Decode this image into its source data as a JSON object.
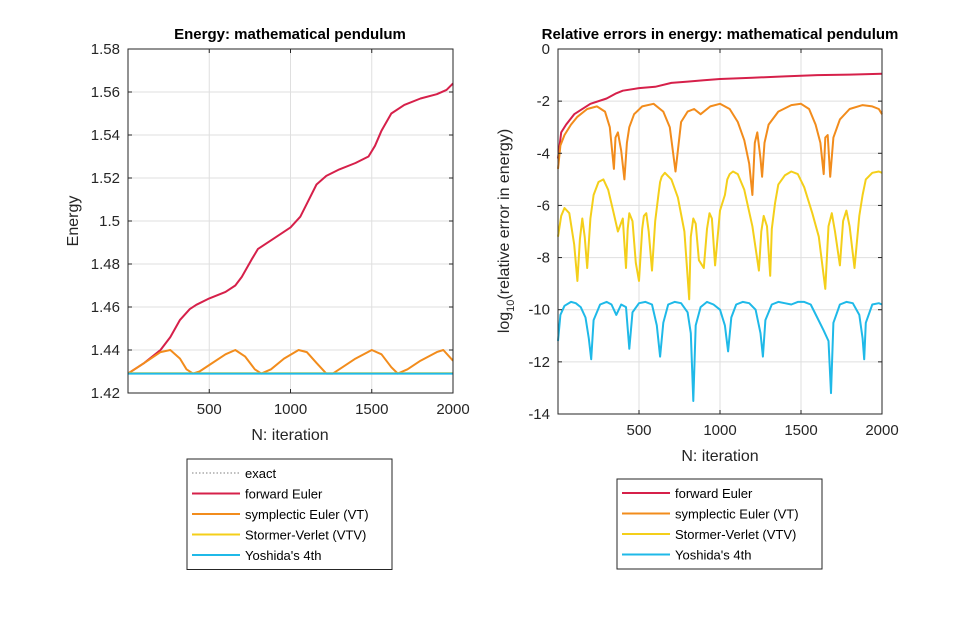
{
  "chart_data": [
    {
      "type": "line",
      "title": "Energy: mathematical pendulum",
      "xlabel": "N: iteration",
      "ylabel": "Energy",
      "xlim": [
        0,
        2000
      ],
      "ylim": [
        1.42,
        1.58
      ],
      "xticks": [
        500,
        1000,
        1500,
        2000
      ],
      "xtick_labels": [
        "500",
        "1000",
        "1500",
        "2000"
      ],
      "yticks": [
        1.42,
        1.44,
        1.46,
        1.48,
        1.5,
        1.52,
        1.54,
        1.56,
        1.58
      ],
      "ytick_labels": [
        "1.42",
        "1.44",
        "1.46",
        "1.48",
        "1.5",
        "1.52",
        "1.54",
        "1.56",
        "1.58"
      ],
      "grid": true,
      "legend_position": "below",
      "series": [
        {
          "name": "exact",
          "color": "#7f7f7f",
          "style": "dotted",
          "x": [
            0,
            2000
          ],
          "y": [
            1.429,
            1.429
          ]
        },
        {
          "name": "forward Euler",
          "color": "#d6204a",
          "style": "solid",
          "x": [
            0,
            100,
            200,
            260,
            320,
            380,
            420,
            500,
            600,
            660,
            700,
            760,
            800,
            900,
            1000,
            1060,
            1100,
            1160,
            1220,
            1300,
            1400,
            1480,
            1520,
            1560,
            1620,
            1700,
            1800,
            1900,
            1960,
            2000
          ],
          "y": [
            1.429,
            1.434,
            1.44,
            1.446,
            1.454,
            1.459,
            1.461,
            1.464,
            1.467,
            1.47,
            1.474,
            1.482,
            1.487,
            1.492,
            1.497,
            1.502,
            1.508,
            1.517,
            1.521,
            1.524,
            1.527,
            1.53,
            1.535,
            1.542,
            1.55,
            1.554,
            1.557,
            1.559,
            1.561,
            1.564
          ]
        },
        {
          "name": "symplectic Euler (VT)",
          "color": "#f28c1c",
          "style": "solid",
          "x": [
            0,
            100,
            200,
            260,
            320,
            360,
            400,
            440,
            500,
            600,
            660,
            720,
            780,
            820,
            880,
            960,
            1050,
            1100,
            1160,
            1220,
            1260,
            1320,
            1400,
            1500,
            1560,
            1620,
            1660,
            1720,
            1800,
            1900,
            1940,
            2000
          ],
          "y": [
            1.429,
            1.434,
            1.439,
            1.44,
            1.436,
            1.431,
            1.429,
            1.43,
            1.433,
            1.438,
            1.44,
            1.437,
            1.431,
            1.429,
            1.431,
            1.436,
            1.44,
            1.439,
            1.434,
            1.429,
            1.429,
            1.432,
            1.436,
            1.44,
            1.438,
            1.432,
            1.429,
            1.431,
            1.435,
            1.439,
            1.44,
            1.435
          ]
        },
        {
          "name": "Stormer-Verlet (VTV)",
          "color": "#f4cf1a",
          "style": "solid",
          "x": [
            0,
            2000
          ],
          "y": [
            1.4292,
            1.4292
          ]
        },
        {
          "name": "Yoshida's 4th",
          "color": "#1fb9e8",
          "style": "solid",
          "x": [
            0,
            2000
          ],
          "y": [
            1.429,
            1.429
          ]
        }
      ]
    },
    {
      "type": "line",
      "title": "Relative errors in energy: mathematical pendulum",
      "xlabel": "N: iteration",
      "ylabel_main": "log",
      "ylabel_sub": "10",
      "ylabel_rest": "(relative error in energy)",
      "xlim": [
        0,
        2000
      ],
      "ylim": [
        -14,
        0
      ],
      "xticks": [
        500,
        1000,
        1500,
        2000
      ],
      "xtick_labels": [
        "500",
        "1000",
        "1500",
        "2000"
      ],
      "yticks": [
        -14,
        -12,
        -10,
        -8,
        -6,
        -4,
        -2,
        0
      ],
      "ytick_labels": [
        "-14",
        "-12",
        "-10",
        "-8",
        "-6",
        "-4",
        "-2",
        "0"
      ],
      "grid": true,
      "legend_position": "below",
      "series": [
        {
          "name": "forward Euler",
          "color": "#d6204a",
          "style": "solid",
          "x": [
            0,
            20,
            50,
            100,
            200,
            300,
            360,
            400,
            500,
            600,
            700,
            800,
            900,
            1000,
            1200,
            1400,
            1600,
            1800,
            2000
          ],
          "y": [
            -4.2,
            -3.2,
            -2.9,
            -2.5,
            -2.1,
            -1.9,
            -1.7,
            -1.6,
            -1.5,
            -1.45,
            -1.3,
            -1.25,
            -1.2,
            -1.15,
            -1.1,
            -1.05,
            -1.0,
            -0.98,
            -0.95
          ]
        },
        {
          "name": "symplectic Euler (VT)",
          "color": "#f28c1c",
          "style": "solid",
          "x": [
            0,
            15,
            40,
            80,
            120,
            180,
            240,
            290,
            320,
            345,
            355,
            370,
            390,
            410,
            425,
            440,
            470,
            520,
            590,
            650,
            690,
            725,
            760,
            800,
            840,
            880,
            940,
            1000,
            1060,
            1110,
            1150,
            1180,
            1200,
            1215,
            1230,
            1250,
            1260,
            1275,
            1300,
            1360,
            1440,
            1500,
            1550,
            1590,
            1620,
            1640,
            1650,
            1665,
            1680,
            1700,
            1740,
            1800,
            1880,
            1940,
            1980,
            2000
          ],
          "y": [
            -4.6,
            -3.7,
            -3.3,
            -2.9,
            -2.6,
            -2.3,
            -2.2,
            -2.4,
            -3.0,
            -4.6,
            -3.4,
            -3.2,
            -3.9,
            -5.0,
            -3.6,
            -3.0,
            -2.5,
            -2.2,
            -2.1,
            -2.4,
            -3.0,
            -4.7,
            -2.8,
            -2.4,
            -2.3,
            -2.5,
            -2.2,
            -2.1,
            -2.3,
            -2.8,
            -3.5,
            -4.4,
            -5.6,
            -3.6,
            -3.2,
            -4.2,
            -4.9,
            -3.6,
            -2.9,
            -2.4,
            -2.15,
            -2.1,
            -2.3,
            -2.9,
            -3.6,
            -4.8,
            -3.4,
            -3.3,
            -4.9,
            -3.4,
            -2.7,
            -2.3,
            -2.15,
            -2.2,
            -2.3,
            -2.5
          ]
        },
        {
          "name": "Stormer-Verlet (VTV)",
          "color": "#f4cf1a",
          "style": "solid",
          "x": [
            0,
            20,
            40,
            70,
            100,
            120,
            135,
            150,
            165,
            180,
            200,
            220,
            250,
            280,
            310,
            340,
            370,
            400,
            420,
            430,
            440,
            460,
            480,
            500,
            520,
            530,
            545,
            560,
            580,
            600,
            620,
            630,
            640,
            660,
            700,
            740,
            780,
            810,
            820,
            835,
            850,
            870,
            900,
            920,
            935,
            950,
            970,
            1000,
            1030,
            1045,
            1060,
            1080,
            1110,
            1150,
            1200,
            1240,
            1255,
            1270,
            1290,
            1310,
            1320,
            1340,
            1360,
            1400,
            1440,
            1480,
            1520,
            1570,
            1610,
            1650,
            1670,
            1690,
            1710,
            1740,
            1760,
            1780,
            1800,
            1830,
            1860,
            1880,
            1900,
            1940,
            1980,
            2000
          ],
          "y": [
            -7.2,
            -6.4,
            -6.1,
            -6.3,
            -7.5,
            -8.9,
            -7.3,
            -6.5,
            -7.2,
            -8.4,
            -6.5,
            -5.6,
            -5.1,
            -5.0,
            -5.4,
            -6.2,
            -7.0,
            -6.5,
            -8.4,
            -6.9,
            -6.3,
            -6.6,
            -8.2,
            -8.9,
            -6.9,
            -6.4,
            -6.3,
            -7.0,
            -8.5,
            -6.6,
            -5.6,
            -5.1,
            -4.9,
            -4.75,
            -5.0,
            -5.7,
            -7.0,
            -9.6,
            -7.2,
            -6.5,
            -6.7,
            -8.1,
            -8.4,
            -6.9,
            -6.3,
            -6.5,
            -8.3,
            -6.2,
            -5.6,
            -5.0,
            -4.8,
            -4.7,
            -4.8,
            -5.4,
            -6.8,
            -8.5,
            -7.0,
            -6.4,
            -6.8,
            -8.7,
            -6.9,
            -5.9,
            -5.2,
            -4.85,
            -4.7,
            -4.8,
            -5.3,
            -6.3,
            -7.2,
            -9.2,
            -6.8,
            -6.3,
            -7.0,
            -8.3,
            -6.6,
            -6.2,
            -6.8,
            -8.4,
            -6.4,
            -5.6,
            -5.0,
            -4.75,
            -4.7,
            -4.75
          ]
        },
        {
          "name": "Yoshida's 4th",
          "color": "#1fb9e8",
          "style": "solid",
          "x": [
            0,
            15,
            40,
            80,
            110,
            140,
            170,
            190,
            205,
            220,
            260,
            300,
            330,
            360,
            390,
            420,
            440,
            460,
            500,
            540,
            580,
            610,
            630,
            650,
            680,
            720,
            760,
            800,
            820,
            835,
            850,
            880,
            920,
            960,
            1000,
            1030,
            1050,
            1070,
            1100,
            1140,
            1180,
            1220,
            1250,
            1265,
            1280,
            1320,
            1360,
            1400,
            1440,
            1480,
            1520,
            1560,
            1600,
            1640,
            1670,
            1685,
            1700,
            1740,
            1780,
            1820,
            1860,
            1880,
            1890,
            1900,
            1940,
            1980,
            2000
          ],
          "y": [
            -11.2,
            -10.2,
            -9.85,
            -9.7,
            -9.75,
            -9.9,
            -10.3,
            -11.1,
            -11.9,
            -10.4,
            -9.8,
            -9.7,
            -9.8,
            -10.2,
            -9.8,
            -9.9,
            -11.5,
            -10.1,
            -9.75,
            -9.7,
            -9.8,
            -10.6,
            -11.8,
            -10.5,
            -9.8,
            -9.7,
            -9.75,
            -10.1,
            -10.9,
            -13.5,
            -10.6,
            -9.9,
            -9.7,
            -9.8,
            -10.0,
            -10.6,
            -11.6,
            -10.3,
            -9.8,
            -9.7,
            -9.75,
            -10.0,
            -10.9,
            -11.8,
            -10.4,
            -9.8,
            -9.7,
            -9.75,
            -9.8,
            -9.7,
            -9.7,
            -9.8,
            -10.3,
            -10.8,
            -11.2,
            -13.2,
            -10.5,
            -9.8,
            -9.7,
            -9.75,
            -10.2,
            -11.1,
            -11.9,
            -10.5,
            -9.8,
            -9.75,
            -9.8
          ]
        }
      ]
    }
  ],
  "legends": [
    {
      "items": [
        {
          "label": "exact",
          "color": "#7f7f7f",
          "dotted": true
        },
        {
          "label": "forward Euler",
          "color": "#d6204a",
          "dotted": false
        },
        {
          "label": "symplectic Euler (VT)",
          "color": "#f28c1c",
          "dotted": false
        },
        {
          "label": "Stormer-Verlet (VTV)",
          "color": "#f4cf1a",
          "dotted": false
        },
        {
          "label": "Yoshida's 4th",
          "color": "#1fb9e8",
          "dotted": false
        }
      ]
    },
    {
      "items": [
        {
          "label": "forward Euler",
          "color": "#d6204a",
          "dotted": false
        },
        {
          "label": "symplectic Euler (VT)",
          "color": "#f28c1c",
          "dotted": false
        },
        {
          "label": "Stormer-Verlet (VTV)",
          "color": "#f4cf1a",
          "dotted": false
        },
        {
          "label": "Yoshida's 4th",
          "color": "#1fb9e8",
          "dotted": false
        }
      ]
    }
  ]
}
